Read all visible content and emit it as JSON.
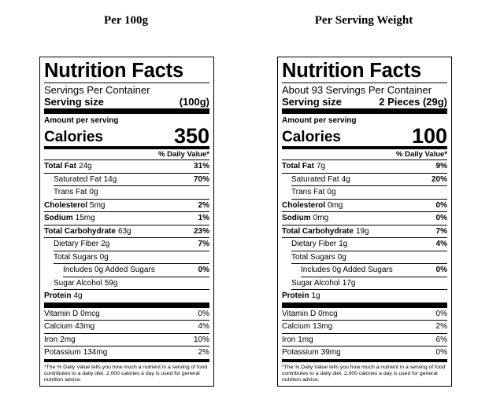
{
  "labels": [
    {
      "heading": "Per 100g",
      "title": "Nutrition Facts",
      "servings": "Servings Per Container",
      "serving_size_label": "Serving size",
      "serving_size": "(100g)",
      "amount_per_serving": "Amount per serving",
      "calories_label": "Calories",
      "calories": "350",
      "dv_header": "% Daily Value*",
      "nutrients": [
        {
          "name": "Total Fat",
          "amount": "24g",
          "dv": "31%"
        },
        {
          "name": "Saturated Fat",
          "amount": "14g",
          "dv": "70%"
        },
        {
          "name": "Trans Fat",
          "amount": "0g"
        },
        {
          "name": "Cholesterol",
          "amount": "5mg",
          "dv": "2%"
        },
        {
          "name": "Sodium",
          "amount": "15mg",
          "dv": "1%"
        },
        {
          "name": "Total Carbohydrate",
          "amount": "63g",
          "dv": "23%"
        },
        {
          "name": "Dietary Fiber",
          "amount": "2g",
          "dv": "7%"
        },
        {
          "name": "Total Sugars",
          "amount": "0g"
        },
        {
          "name": "Includes 0g Added Sugars",
          "dv": "0%"
        },
        {
          "name": "Sugar Alcohol",
          "amount": "59g"
        },
        {
          "name": "Protein",
          "amount": "4g"
        }
      ],
      "vitamins": [
        {
          "name": "Vitamin D",
          "amount": "0mcg",
          "dv": "0%"
        },
        {
          "name": "Calcium",
          "amount": "43mg",
          "dv": "4%"
        },
        {
          "name": "Iron",
          "amount": "2mg",
          "dv": "10%"
        },
        {
          "name": "Potassium",
          "amount": "134mg",
          "dv": "2%"
        }
      ],
      "footnote": "*The % Daily Value tells you how much a nutrient in a serving of food contributes to a daily diet. 2,000 calories a day is used for general nutrition advice."
    },
    {
      "heading": "Per Serving Weight",
      "title": "Nutrition Facts",
      "servings": "About 93 Servings Per Container",
      "serving_size_label": "Serving size",
      "serving_size": "2 Pieces (29g)",
      "amount_per_serving": "Amount per serving",
      "calories_label": "Calories",
      "calories": "100",
      "dv_header": "% Daily Value*",
      "nutrients": [
        {
          "name": "Total Fat",
          "amount": "7g",
          "dv": "9%"
        },
        {
          "name": "Saturated Fat",
          "amount": "4g",
          "dv": "20%"
        },
        {
          "name": "Trans Fat",
          "amount": "0g"
        },
        {
          "name": "Cholesterol",
          "amount": "0mg",
          "dv": "0%"
        },
        {
          "name": "Sodium",
          "amount": "0mg",
          "dv": "0%"
        },
        {
          "name": "Total Carbohydrate",
          "amount": "19g",
          "dv": "7%"
        },
        {
          "name": "Dietary Fiber",
          "amount": "1g",
          "dv": "4%"
        },
        {
          "name": "Total Sugars",
          "amount": "0g"
        },
        {
          "name": "Includes 0g Added Sugars",
          "dv": "0%"
        },
        {
          "name": "Sugar Alcohol",
          "amount": "17g"
        },
        {
          "name": "Protein",
          "amount": "1g"
        }
      ],
      "vitamins": [
        {
          "name": "Vitamin D",
          "amount": "0mcg",
          "dv": "0%"
        },
        {
          "name": "Calcium",
          "amount": "13mg",
          "dv": "2%"
        },
        {
          "name": "Iron",
          "amount": "1mg",
          "dv": "6%"
        },
        {
          "name": "Potassium",
          "amount": "39mg",
          "dv": "0%"
        }
      ],
      "footnote": "*The % Daily Value tells you how much a nutrient in a serving of food contributes to a daily diet. 2,000 calories a day is used for general nutrition advice."
    }
  ]
}
